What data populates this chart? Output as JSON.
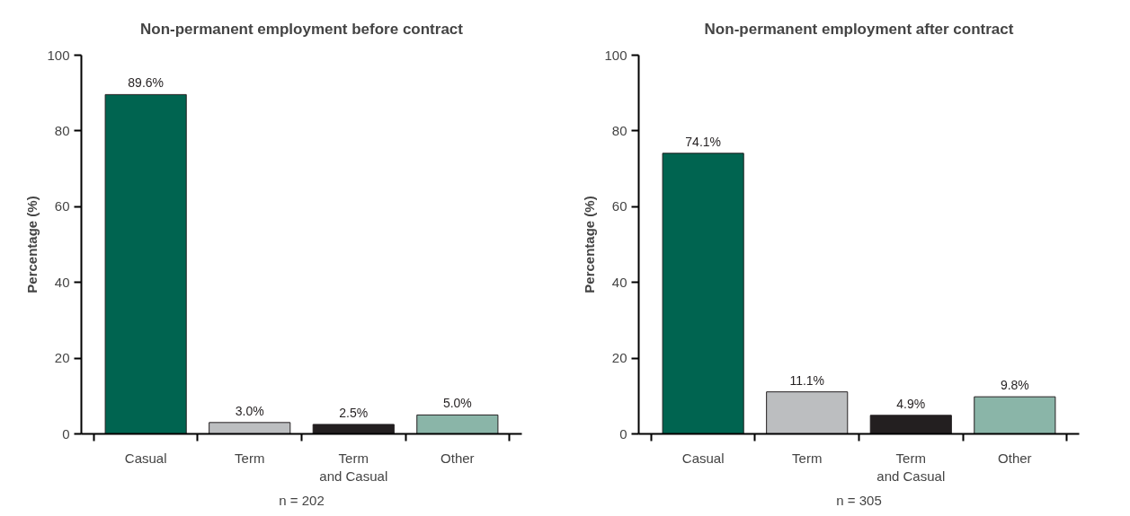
{
  "chart_data": [
    {
      "type": "bar",
      "title": "Non-permanent employment before contract",
      "ylabel": "Percentage (%)",
      "categories": [
        "Casual",
        "Term",
        "Term\nand Casual",
        "Other"
      ],
      "values": [
        89.6,
        3.0,
        2.5,
        5.0
      ],
      "colors": [
        "#006450",
        "#bcbec0",
        "#231f20",
        "#8ab5a8"
      ],
      "value_labels": [
        "89.6%",
        "3.0%",
        "2.5%",
        "5.0%"
      ],
      "ylim": [
        0,
        100
      ],
      "yticks": [
        0,
        20,
        40,
        60,
        80,
        100
      ],
      "grid": false,
      "annotations": [
        "n = 202"
      ]
    },
    {
      "type": "bar",
      "title": "Non-permanent employment after contract",
      "ylabel": "Percentage (%)",
      "categories": [
        "Casual",
        "Term",
        "Term\nand Casual",
        "Other"
      ],
      "values": [
        74.1,
        11.1,
        4.9,
        9.8
      ],
      "colors": [
        "#006450",
        "#bcbec0",
        "#231f20",
        "#8ab5a8"
      ],
      "value_labels": [
        "74.1%",
        "11.1%",
        "4.9%",
        "9.8%"
      ],
      "ylim": [
        0,
        100
      ],
      "yticks": [
        0,
        20,
        40,
        60,
        80,
        100
      ],
      "grid": false,
      "annotations": [
        "n = 305"
      ]
    }
  ]
}
